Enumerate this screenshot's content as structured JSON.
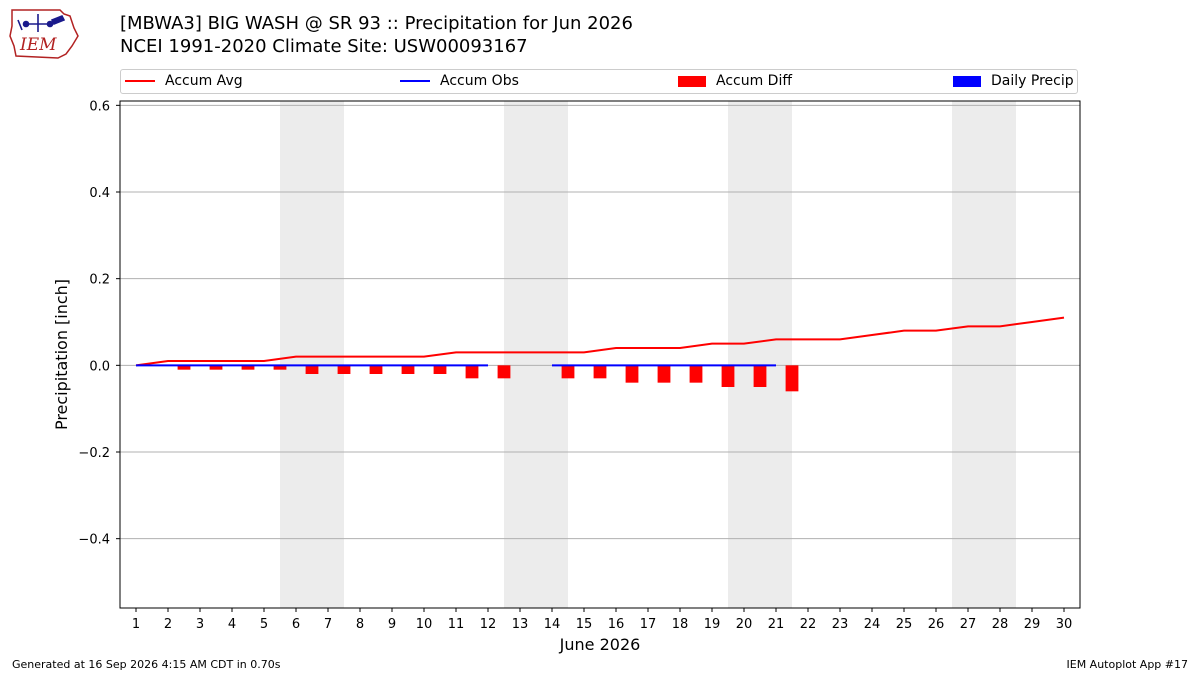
{
  "title_line1": "[MBWA3] BIG WASH @ SR 93 :: Precipitation for Jun 2026",
  "title_line2": "NCEI 1991-2020 Climate Site: USW00093167",
  "logo_text": "IEM",
  "footer_left": "Generated at 16 Sep 2026 4:15 AM CDT in 0.70s",
  "footer_right": "IEM Autoplot App #17",
  "colors": {
    "avg": "#ff0000",
    "obs": "#0000ff",
    "diff": "#ff0000",
    "daily": "#0000ff",
    "weekend": "#ececec",
    "grid": "#b0b0b0"
  },
  "chart_data": {
    "type": "line",
    "xlabel": "June 2026",
    "ylabel": "Precipitation [inch]",
    "xlim": [
      0.5,
      30.5
    ],
    "ylim": [
      -0.56,
      0.61
    ],
    "yticks": [
      -0.4,
      -0.2,
      0.0,
      0.2,
      0.4,
      0.6
    ],
    "ytick_labels": [
      "−0.4",
      "−0.2",
      "0.0",
      "0.2",
      "0.4",
      "0.6"
    ],
    "x": [
      1,
      2,
      3,
      4,
      5,
      6,
      7,
      8,
      9,
      10,
      11,
      12,
      13,
      14,
      15,
      16,
      17,
      18,
      19,
      20,
      21,
      22,
      23,
      24,
      25,
      26,
      27,
      28,
      29,
      30
    ],
    "xtick_labels": [
      "1",
      "2",
      "3",
      "4",
      "5",
      "6",
      "7",
      "8",
      "9",
      "10",
      "11",
      "12",
      "13",
      "14",
      "15",
      "16",
      "17",
      "18",
      "19",
      "20",
      "21",
      "22",
      "23",
      "24",
      "25",
      "26",
      "27",
      "28",
      "29",
      "30"
    ],
    "weekend_spans": [
      [
        5.5,
        7.5
      ],
      [
        12.5,
        14.5
      ],
      [
        19.5,
        21.5
      ],
      [
        26.5,
        28.5
      ]
    ],
    "legend": {
      "position": "top",
      "entries": [
        {
          "label": "Accum Avg",
          "kind": "line",
          "color_key": "avg"
        },
        {
          "label": "Accum Obs",
          "kind": "line",
          "color_key": "obs"
        },
        {
          "label": "Accum Diff",
          "kind": "bar",
          "color_key": "diff"
        },
        {
          "label": "Daily Precip",
          "kind": "bar",
          "color_key": "daily"
        }
      ]
    },
    "series": [
      {
        "name": "Accum Avg",
        "type": "line",
        "values": [
          0.0,
          0.01,
          0.01,
          0.01,
          0.01,
          0.02,
          0.02,
          0.02,
          0.02,
          0.02,
          0.03,
          0.03,
          0.03,
          0.03,
          0.03,
          0.04,
          0.04,
          0.04,
          0.05,
          0.05,
          0.06,
          0.06,
          0.06,
          0.07,
          0.08,
          0.08,
          0.09,
          0.09,
          0.1,
          0.11
        ]
      },
      {
        "name": "Accum Obs",
        "type": "line",
        "values": [
          0,
          0,
          0,
          0,
          0,
          0,
          0,
          0,
          0,
          0,
          0,
          0,
          null,
          0,
          0,
          0,
          0,
          0,
          0,
          0,
          0,
          null,
          null,
          null,
          null,
          null,
          null,
          null,
          null,
          null
        ]
      },
      {
        "name": "Accum Diff",
        "type": "bar",
        "values": [
          0.0,
          -0.01,
          -0.01,
          -0.01,
          -0.01,
          -0.02,
          -0.02,
          -0.02,
          -0.02,
          -0.02,
          -0.03,
          -0.03,
          null,
          -0.03,
          -0.03,
          -0.04,
          -0.04,
          -0.04,
          -0.05,
          -0.05,
          -0.06,
          null,
          null,
          null,
          null,
          null,
          null,
          null,
          null,
          null
        ]
      },
      {
        "name": "Daily Precip",
        "type": "bar",
        "values": [
          0,
          0,
          0,
          0,
          0,
          0,
          0,
          0,
          0,
          0,
          0,
          0,
          null,
          0,
          0,
          0,
          0,
          0,
          0,
          0,
          0,
          null,
          null,
          null,
          null,
          null,
          null,
          null,
          null,
          null
        ]
      }
    ]
  }
}
